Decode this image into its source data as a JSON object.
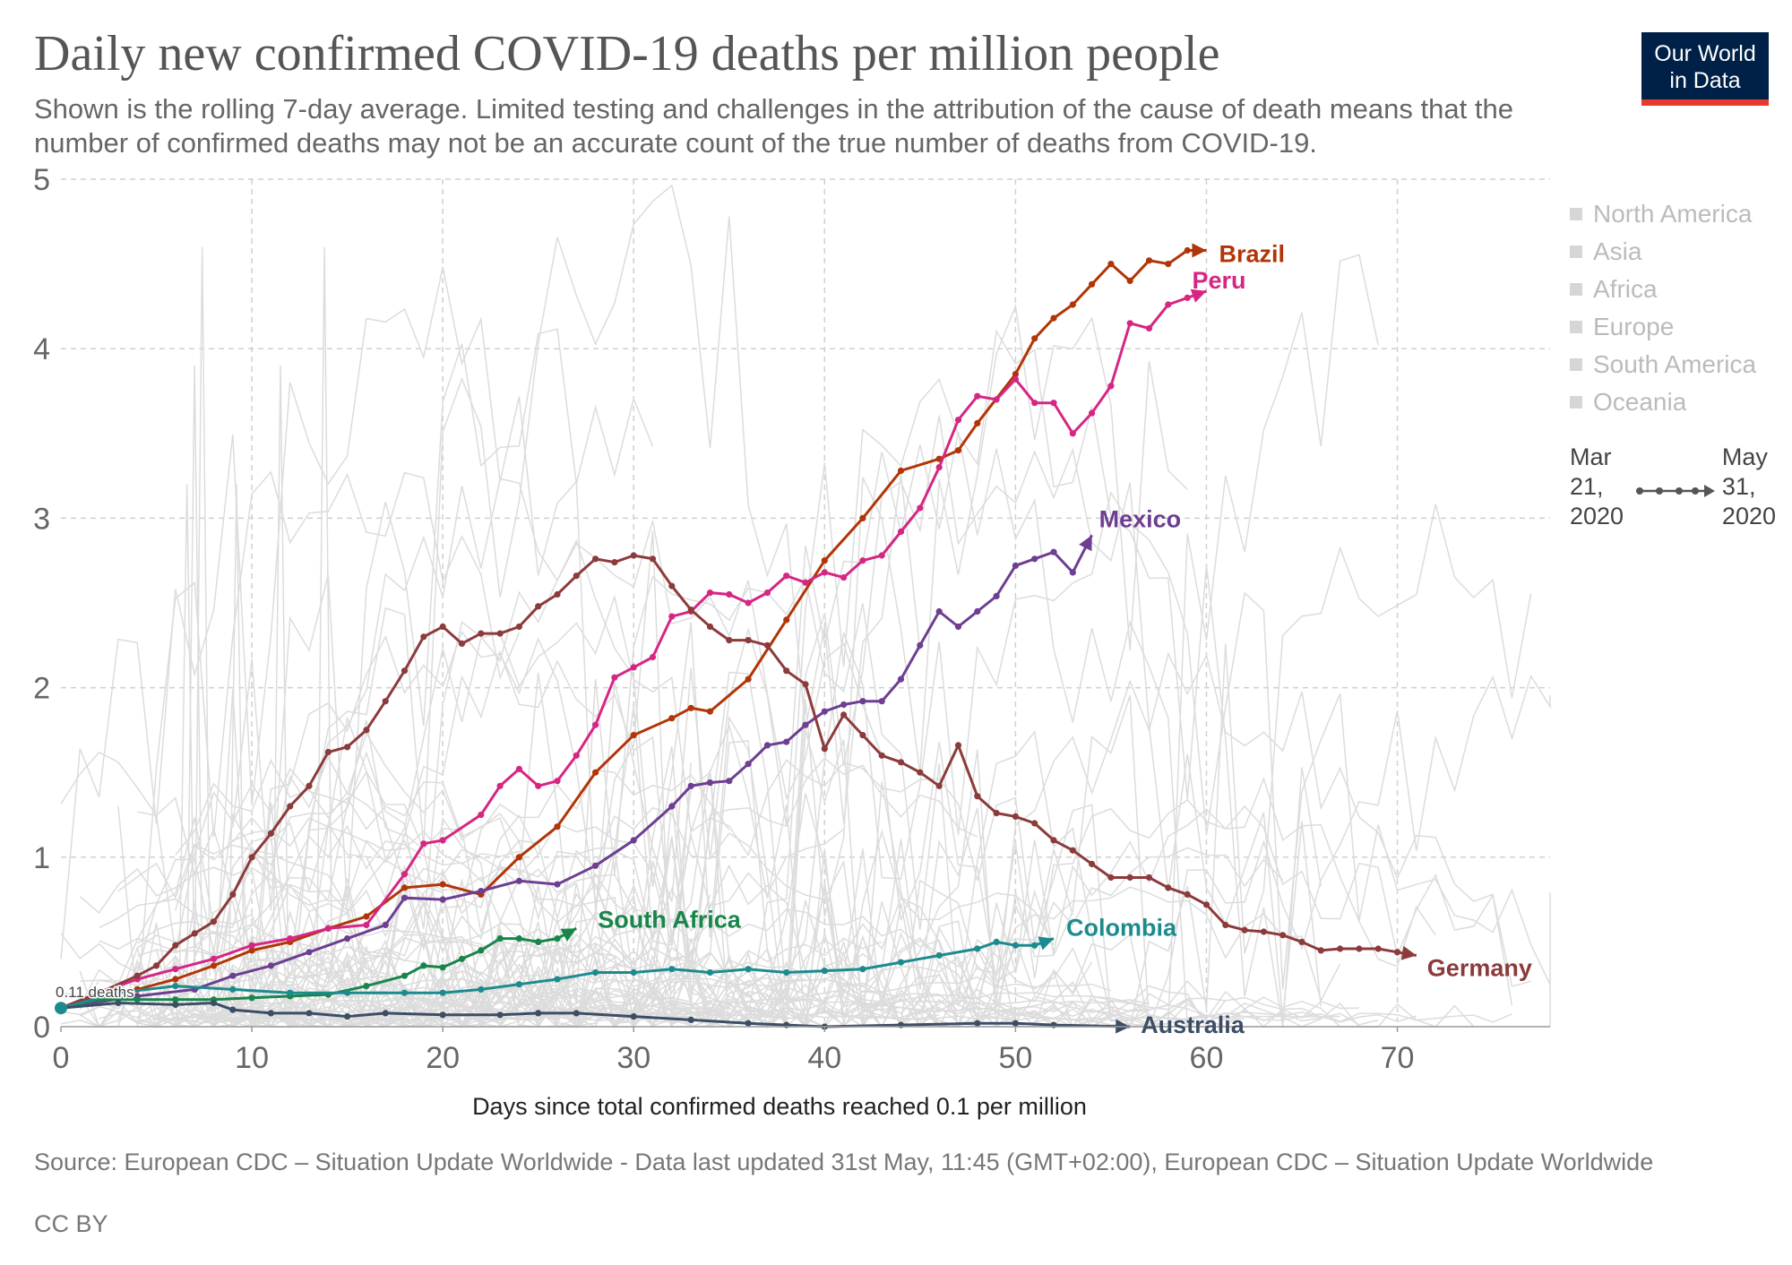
{
  "header": {
    "title": "Daily new confirmed COVID-19 deaths per million people",
    "subtitle": "Shown is the rolling 7-day average. Limited testing and challenges in the attribution of the cause of death means that the number of confirmed deaths may not be an accurate count of the true number of deaths from COVID-19.",
    "logo_line1": "Our World",
    "logo_line2": "in Data"
  },
  "legend": {
    "regions": [
      "North America",
      "Asia",
      "Africa",
      "Europe",
      "South America",
      "Oceania"
    ]
  },
  "timeline": {
    "start_month": "Mar",
    "start_day": "21,",
    "start_year": "2020",
    "end_month": "May",
    "end_day": "31,",
    "end_year": "2020"
  },
  "footer": {
    "source": "Source: European CDC – Situation Update Worldwide - Data last updated 31st May, 11:45 (GMT+02:00), European CDC – Situation Update Worldwide",
    "license": "CC BY"
  },
  "chart_data": {
    "type": "line",
    "title": "Daily new confirmed COVID-19 deaths per million people",
    "xlabel": "Days since total confirmed deaths reached 0.1 per million",
    "ylabel": "",
    "xlim": [
      0,
      78
    ],
    "ylim": [
      0,
      5
    ],
    "xticks": [
      0,
      10,
      20,
      30,
      40,
      50,
      60,
      70
    ],
    "yticks": [
      0,
      1,
      2,
      3,
      4,
      5
    ],
    "grid": true,
    "start_annotation": "0.11 deaths",
    "series": [
      {
        "name": "Brazil",
        "color": "#b13507",
        "points": [
          [
            0,
            0.11
          ],
          [
            2,
            0.18
          ],
          [
            4,
            0.22
          ],
          [
            6,
            0.28
          ],
          [
            8,
            0.36
          ],
          [
            10,
            0.45
          ],
          [
            12,
            0.5
          ],
          [
            14,
            0.58
          ],
          [
            16,
            0.65
          ],
          [
            18,
            0.82
          ],
          [
            20,
            0.84
          ],
          [
            22,
            0.78
          ],
          [
            24,
            1.0
          ],
          [
            26,
            1.18
          ],
          [
            28,
            1.5
          ],
          [
            30,
            1.72
          ],
          [
            32,
            1.82
          ],
          [
            33,
            1.88
          ],
          [
            34,
            1.86
          ],
          [
            36,
            2.05
          ],
          [
            38,
            2.4
          ],
          [
            40,
            2.75
          ],
          [
            42,
            3.0
          ],
          [
            44,
            3.28
          ],
          [
            46,
            3.35
          ],
          [
            47,
            3.4
          ],
          [
            48,
            3.56
          ],
          [
            50,
            3.85
          ],
          [
            51,
            4.06
          ],
          [
            52,
            4.18
          ],
          [
            53,
            4.26
          ],
          [
            54,
            4.38
          ],
          [
            55,
            4.5
          ],
          [
            56,
            4.4
          ],
          [
            57,
            4.52
          ],
          [
            58,
            4.5
          ],
          [
            59,
            4.58
          ],
          [
            60,
            4.58
          ]
        ]
      },
      {
        "name": "Peru",
        "color": "#d62684",
        "points": [
          [
            0,
            0.11
          ],
          [
            2,
            0.2
          ],
          [
            4,
            0.28
          ],
          [
            6,
            0.34
          ],
          [
            8,
            0.4
          ],
          [
            10,
            0.48
          ],
          [
            12,
            0.52
          ],
          [
            14,
            0.58
          ],
          [
            16,
            0.6
          ],
          [
            18,
            0.9
          ],
          [
            19,
            1.08
          ],
          [
            20,
            1.1
          ],
          [
            22,
            1.25
          ],
          [
            23,
            1.42
          ],
          [
            24,
            1.52
          ],
          [
            25,
            1.42
          ],
          [
            26,
            1.45
          ],
          [
            27,
            1.6
          ],
          [
            28,
            1.78
          ],
          [
            29,
            2.06
          ],
          [
            30,
            2.12
          ],
          [
            31,
            2.18
          ],
          [
            32,
            2.42
          ],
          [
            33,
            2.45
          ],
          [
            34,
            2.56
          ],
          [
            35,
            2.55
          ],
          [
            36,
            2.5
          ],
          [
            37,
            2.56
          ],
          [
            38,
            2.66
          ],
          [
            39,
            2.62
          ],
          [
            40,
            2.68
          ],
          [
            41,
            2.65
          ],
          [
            42,
            2.75
          ],
          [
            43,
            2.78
          ],
          [
            44,
            2.92
          ],
          [
            45,
            3.06
          ],
          [
            46,
            3.3
          ],
          [
            47,
            3.58
          ],
          [
            48,
            3.72
          ],
          [
            49,
            3.7
          ],
          [
            50,
            3.82
          ],
          [
            51,
            3.68
          ],
          [
            52,
            3.68
          ],
          [
            53,
            3.5
          ],
          [
            54,
            3.62
          ],
          [
            55,
            3.78
          ],
          [
            56,
            4.15
          ],
          [
            57,
            4.12
          ],
          [
            58,
            4.26
          ],
          [
            59,
            4.3
          ],
          [
            60,
            4.34
          ]
        ]
      },
      {
        "name": "Mexico",
        "color": "#6d3e91",
        "points": [
          [
            0,
            0.11
          ],
          [
            4,
            0.18
          ],
          [
            7,
            0.22
          ],
          [
            9,
            0.3
          ],
          [
            11,
            0.36
          ],
          [
            13,
            0.44
          ],
          [
            15,
            0.52
          ],
          [
            17,
            0.6
          ],
          [
            18,
            0.76
          ],
          [
            20,
            0.75
          ],
          [
            22,
            0.8
          ],
          [
            24,
            0.86
          ],
          [
            26,
            0.84
          ],
          [
            28,
            0.95
          ],
          [
            30,
            1.1
          ],
          [
            32,
            1.3
          ],
          [
            33,
            1.42
          ],
          [
            34,
            1.44
          ],
          [
            35,
            1.45
          ],
          [
            36,
            1.55
          ],
          [
            37,
            1.66
          ],
          [
            38,
            1.68
          ],
          [
            39,
            1.78
          ],
          [
            40,
            1.86
          ],
          [
            41,
            1.9
          ],
          [
            42,
            1.92
          ],
          [
            43,
            1.92
          ],
          [
            44,
            2.05
          ],
          [
            45,
            2.25
          ],
          [
            46,
            2.45
          ],
          [
            47,
            2.36
          ],
          [
            48,
            2.45
          ],
          [
            49,
            2.54
          ],
          [
            50,
            2.72
          ],
          [
            51,
            2.76
          ],
          [
            52,
            2.8
          ],
          [
            53,
            2.68
          ],
          [
            54,
            2.9
          ]
        ]
      },
      {
        "name": "Germany",
        "color": "#8c3b3b",
        "points": [
          [
            0,
            0.11
          ],
          [
            2,
            0.2
          ],
          [
            4,
            0.3
          ],
          [
            5,
            0.36
          ],
          [
            6,
            0.48
          ],
          [
            7,
            0.55
          ],
          [
            8,
            0.62
          ],
          [
            9,
            0.78
          ],
          [
            10,
            1.0
          ],
          [
            11,
            1.14
          ],
          [
            12,
            1.3
          ],
          [
            13,
            1.42
          ],
          [
            14,
            1.62
          ],
          [
            15,
            1.65
          ],
          [
            16,
            1.75
          ],
          [
            17,
            1.92
          ],
          [
            18,
            2.1
          ],
          [
            19,
            2.3
          ],
          [
            20,
            2.36
          ],
          [
            21,
            2.26
          ],
          [
            22,
            2.32
          ],
          [
            23,
            2.32
          ],
          [
            24,
            2.36
          ],
          [
            25,
            2.48
          ],
          [
            26,
            2.55
          ],
          [
            27,
            2.66
          ],
          [
            28,
            2.76
          ],
          [
            29,
            2.74
          ],
          [
            30,
            2.78
          ],
          [
            31,
            2.76
          ],
          [
            32,
            2.6
          ],
          [
            33,
            2.46
          ],
          [
            34,
            2.36
          ],
          [
            35,
            2.28
          ],
          [
            36,
            2.28
          ],
          [
            37,
            2.25
          ],
          [
            38,
            2.1
          ],
          [
            39,
            2.02
          ],
          [
            40,
            1.64
          ],
          [
            41,
            1.84
          ],
          [
            42,
            1.72
          ],
          [
            43,
            1.6
          ],
          [
            44,
            1.56
          ],
          [
            45,
            1.5
          ],
          [
            46,
            1.42
          ],
          [
            47,
            1.66
          ],
          [
            48,
            1.36
          ],
          [
            49,
            1.26
          ],
          [
            50,
            1.24
          ],
          [
            51,
            1.2
          ],
          [
            52,
            1.1
          ],
          [
            53,
            1.04
          ],
          [
            54,
            0.96
          ],
          [
            55,
            0.88
          ],
          [
            56,
            0.88
          ],
          [
            57,
            0.88
          ],
          [
            58,
            0.82
          ],
          [
            59,
            0.78
          ],
          [
            60,
            0.72
          ],
          [
            61,
            0.6
          ],
          [
            62,
            0.57
          ],
          [
            63,
            0.56
          ],
          [
            64,
            0.54
          ],
          [
            65,
            0.5
          ],
          [
            66,
            0.45
          ],
          [
            67,
            0.46
          ],
          [
            68,
            0.46
          ],
          [
            69,
            0.46
          ],
          [
            70,
            0.44
          ],
          [
            71,
            0.42
          ]
        ]
      },
      {
        "name": "South Africa",
        "color": "#18864b",
        "points": [
          [
            0,
            0.11
          ],
          [
            2,
            0.16
          ],
          [
            4,
            0.16
          ],
          [
            6,
            0.16
          ],
          [
            8,
            0.16
          ],
          [
            10,
            0.17
          ],
          [
            12,
            0.18
          ],
          [
            14,
            0.19
          ],
          [
            16,
            0.24
          ],
          [
            18,
            0.3
          ],
          [
            19,
            0.36
          ],
          [
            20,
            0.35
          ],
          [
            21,
            0.4
          ],
          [
            22,
            0.45
          ],
          [
            23,
            0.52
          ],
          [
            24,
            0.52
          ],
          [
            25,
            0.5
          ],
          [
            26,
            0.52
          ],
          [
            27,
            0.58
          ]
        ]
      },
      {
        "name": "Colombia",
        "color": "#1d8b8e",
        "points": [
          [
            0,
            0.11
          ],
          [
            3,
            0.2
          ],
          [
            6,
            0.24
          ],
          [
            9,
            0.22
          ],
          [
            12,
            0.2
          ],
          [
            15,
            0.2
          ],
          [
            18,
            0.2
          ],
          [
            20,
            0.2
          ],
          [
            22,
            0.22
          ],
          [
            24,
            0.25
          ],
          [
            26,
            0.28
          ],
          [
            28,
            0.32
          ],
          [
            30,
            0.32
          ],
          [
            32,
            0.34
          ],
          [
            34,
            0.32
          ],
          [
            36,
            0.34
          ],
          [
            38,
            0.32
          ],
          [
            40,
            0.33
          ],
          [
            42,
            0.34
          ],
          [
            44,
            0.38
          ],
          [
            46,
            0.42
          ],
          [
            48,
            0.46
          ],
          [
            49,
            0.5
          ],
          [
            50,
            0.48
          ],
          [
            51,
            0.48
          ],
          [
            52,
            0.52
          ]
        ]
      },
      {
        "name": "Australia",
        "color": "#3c4e66",
        "points": [
          [
            0,
            0.11
          ],
          [
            3,
            0.14
          ],
          [
            6,
            0.13
          ],
          [
            8,
            0.14
          ],
          [
            9,
            0.1
          ],
          [
            11,
            0.08
          ],
          [
            13,
            0.08
          ],
          [
            15,
            0.06
          ],
          [
            17,
            0.08
          ],
          [
            20,
            0.07
          ],
          [
            23,
            0.07
          ],
          [
            25,
            0.08
          ],
          [
            27,
            0.08
          ],
          [
            30,
            0.06
          ],
          [
            33,
            0.04
          ],
          [
            36,
            0.02
          ],
          [
            38,
            0.01
          ],
          [
            40,
            0.0
          ],
          [
            44,
            0.01
          ],
          [
            48,
            0.02
          ],
          [
            50,
            0.02
          ],
          [
            52,
            0.01
          ],
          [
            56,
            0.0
          ]
        ]
      }
    ]
  }
}
